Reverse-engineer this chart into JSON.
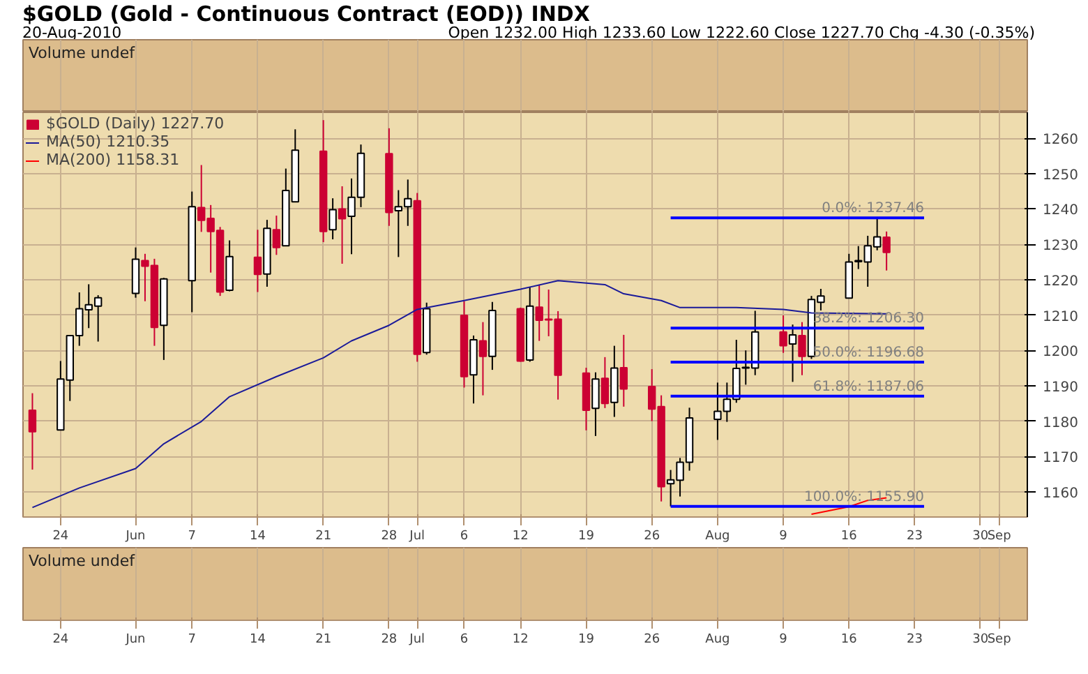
{
  "chart_data": {
    "type": "candlestick",
    "title": "$GOLD (Gold - Continuous Contract (EOD)) INDX",
    "subtitle": "20-Aug-2010",
    "annotations": [
      "Open 1232.00 High 1233.60 Low 1222.60 Close 1227.70 Chg -4.30 (-0.35%)",
      "Volume undef",
      "Volume undef",
      {
        "text": "0.0%: 1237.46",
        "x": "2010-08-24",
        "y": 1237.46
      },
      {
        "text": "38.2%: 1206.30",
        "x": "2010-08-24",
        "y": 1206.3
      },
      {
        "text": "50.0%: 1196.68",
        "x": "2010-08-24",
        "y": 1196.68
      },
      {
        "text": "61.8%: 1187.06",
        "x": "2010-08-24",
        "y": 1187.06
      },
      {
        "text": "100.0%: 1155.90",
        "x": "2010-08-24",
        "y": 1155.9
      }
    ],
    "xlim": [
      "2010-05-20",
      "2010-09-04"
    ],
    "xticks": [
      {
        "value": "2010-05-24",
        "label": "24"
      },
      {
        "value": "2010-06-01",
        "label": "Jun"
      },
      {
        "value": "2010-06-07",
        "label": "7"
      },
      {
        "value": "2010-06-14",
        "label": "14"
      },
      {
        "value": "2010-06-21",
        "label": "21"
      },
      {
        "value": "2010-06-28",
        "label": "28"
      },
      {
        "value": "2010-07-01",
        "label": "Jul"
      },
      {
        "value": "2010-07-06",
        "label": "6"
      },
      {
        "value": "2010-07-12",
        "label": "12"
      },
      {
        "value": "2010-07-19",
        "label": "19"
      },
      {
        "value": "2010-07-26",
        "label": "26"
      },
      {
        "value": "2010-08-02",
        "label": "Aug"
      },
      {
        "value": "2010-08-09",
        "label": "9"
      },
      {
        "value": "2010-08-16",
        "label": "16"
      },
      {
        "value": "2010-08-23",
        "label": "23"
      },
      {
        "value": "2010-08-30",
        "label": "30"
      },
      {
        "value": "2010-09-01",
        "label": "Sep"
      }
    ],
    "ylim": [
      1152.9,
      1267.3
    ],
    "yticks": [
      1160,
      1170,
      1180,
      1190,
      1200,
      1210,
      1220,
      1230,
      1240,
      1250,
      1260
    ],
    "grid": true,
    "legend": "top left",
    "series": [
      {
        "name": "$GOLD (Daily) 1227.70",
        "type": "candlestick",
        "colors": [
          "#cc0033",
          "#ffffff",
          "#ffffff",
          "#ffffff",
          "#ffffff",
          "#ffffff",
          "#ffffff",
          "#cc0033",
          "#cc0033",
          "#ffffff",
          "#ffffff",
          "#cc0033",
          "#cc0033",
          "#cc0033",
          "#ffffff",
          "#cc0033",
          "#ffffff",
          "#cc0033",
          "#ffffff",
          "#ffffff",
          "#cc0033",
          "#ffffff",
          "#cc0033",
          "#ffffff",
          "#ffffff",
          "#cc0033",
          "#ffffff",
          "#ffffff",
          "#cc0033",
          "#ffffff",
          "#cc0033",
          "#ffffff",
          "#cc0033",
          "#ffffff",
          "#cc0033",
          "#ffffff",
          "#cc0033",
          "#cc0033",
          "#cc0033",
          "#cc0033",
          "#ffffff",
          "#cc0033",
          "#ffffff",
          "#cc0033",
          "#cc0033",
          "#cc0033",
          "#ffffff",
          "#ffffff",
          "#ffffff",
          "#ffffff",
          "#ffffff",
          "#ffffff",
          "#ffffff",
          "#ffffff",
          "#cc0033",
          "#ffffff",
          "#cc0033",
          "#ffffff",
          "#ffffff",
          "#ffffff",
          "#ffffff",
          "#ffffff",
          "#ffffff",
          "#cc0033"
        ],
        "x": [
          "2010-05-21",
          "2010-05-24",
          "2010-05-25",
          "2010-05-26",
          "2010-05-27",
          "2010-05-28",
          "2010-06-01",
          "2010-06-02",
          "2010-06-03",
          "2010-06-04",
          "2010-06-07",
          "2010-06-08",
          "2010-06-09",
          "2010-06-10",
          "2010-06-11",
          "2010-06-14",
          "2010-06-15",
          "2010-06-16",
          "2010-06-17",
          "2010-06-18",
          "2010-06-21",
          "2010-06-22",
          "2010-06-23",
          "2010-06-24",
          "2010-06-25",
          "2010-06-28",
          "2010-06-29",
          "2010-06-30",
          "2010-07-01",
          "2010-07-02",
          "2010-07-06",
          "2010-07-07",
          "2010-07-08",
          "2010-07-09",
          "2010-07-12",
          "2010-07-13",
          "2010-07-14",
          "2010-07-15",
          "2010-07-16",
          "2010-07-19",
          "2010-07-20",
          "2010-07-21",
          "2010-07-22",
          "2010-07-23",
          "2010-07-26",
          "2010-07-27",
          "2010-07-28",
          "2010-07-29",
          "2010-07-30",
          "2010-08-02",
          "2010-08-03",
          "2010-08-04",
          "2010-08-05",
          "2010-08-06",
          "2010-08-09",
          "2010-08-10",
          "2010-08-11",
          "2010-08-12",
          "2010-08-13",
          "2010-08-16",
          "2010-08-17",
          "2010-08-18",
          "2010-08-19",
          "2010-08-20"
        ],
        "ohlc": [
          [
            1183.1,
            1187.9,
            1166.3,
            1177.0
          ],
          [
            1177.5,
            1197.0,
            1177.5,
            1191.9
          ],
          [
            1191.6,
            1204.2,
            1185.7,
            1204.2
          ],
          [
            1204.2,
            1216.4,
            1201.3,
            1211.8
          ],
          [
            1211.5,
            1218.7,
            1206.3,
            1212.9
          ],
          [
            1212.5,
            1215.6,
            1202.5,
            1214.9
          ],
          [
            1216.1,
            1229.1,
            1214.9,
            1225.8
          ],
          [
            1225.4,
            1227.3,
            1213.9,
            1223.8
          ],
          [
            1224.0,
            1225.9,
            1201.3,
            1206.5
          ],
          [
            1207.1,
            1220.5,
            1197.3,
            1220.2
          ],
          [
            1219.7,
            1244.9,
            1210.8,
            1240.6
          ],
          [
            1240.4,
            1252.4,
            1233.5,
            1236.8
          ],
          [
            1237.3,
            1241.1,
            1222.0,
            1233.6
          ],
          [
            1233.9,
            1234.9,
            1215.4,
            1216.5
          ],
          [
            1217.0,
            1231.1,
            1216.7,
            1226.5
          ],
          [
            1226.3,
            1234.1,
            1216.5,
            1221.5
          ],
          [
            1221.6,
            1236.9,
            1218.0,
            1234.5
          ],
          [
            1234.1,
            1238.1,
            1227.0,
            1229.1
          ],
          [
            1229.6,
            1251.4,
            1229.6,
            1245.2
          ],
          [
            1242.0,
            1262.5,
            1242.0,
            1256.6
          ],
          [
            1256.3,
            1265.1,
            1230.6,
            1233.6
          ],
          [
            1234.1,
            1243.0,
            1231.4,
            1239.8
          ],
          [
            1240.0,
            1246.4,
            1224.5,
            1237.2
          ],
          [
            1237.9,
            1248.6,
            1227.2,
            1243.3
          ],
          [
            1243.3,
            1258.2,
            1240.5,
            1255.7
          ],
          [
            1255.6,
            1262.8,
            1235.2,
            1239.0
          ],
          [
            1239.5,
            1245.3,
            1226.4,
            1240.6
          ],
          [
            1240.6,
            1248.3,
            1235.2,
            1242.9
          ],
          [
            1242.3,
            1244.5,
            1196.8,
            1198.9
          ],
          [
            1199.4,
            1213.5,
            1198.8,
            1211.8
          ],
          [
            1209.9,
            1213.9,
            1189.5,
            1192.6
          ],
          [
            1193.1,
            1204.2,
            1185.0,
            1203.0
          ],
          [
            1202.7,
            1208.0,
            1187.3,
            1198.3
          ],
          [
            1198.3,
            1213.7,
            1194.5,
            1211.3
          ],
          [
            1211.8,
            1212.1,
            1196.8,
            1197.0
          ],
          [
            1197.3,
            1217.8,
            1196.8,
            1212.5
          ],
          [
            1212.2,
            1218.6,
            1202.7,
            1208.5
          ],
          [
            1208.8,
            1217.2,
            1204.0,
            1208.6
          ],
          [
            1208.8,
            1211.1,
            1186.1,
            1193.0
          ],
          [
            1193.6,
            1195.1,
            1177.4,
            1183.1
          ],
          [
            1183.6,
            1193.8,
            1175.8,
            1191.9
          ],
          [
            1192.1,
            1198.1,
            1183.7,
            1185.0
          ],
          [
            1185.3,
            1201.3,
            1181.2,
            1195.0
          ],
          [
            1195.1,
            1204.4,
            1184.1,
            1189.1
          ],
          [
            1189.8,
            1194.7,
            1180.0,
            1183.4
          ],
          [
            1184.1,
            1187.3,
            1157.3,
            1161.5
          ],
          [
            1162.3,
            1166.2,
            1155.9,
            1163.4
          ],
          [
            1163.3,
            1169.6,
            1158.7,
            1168.4
          ],
          [
            1168.4,
            1183.8,
            1166.0,
            1180.9
          ],
          [
            1180.5,
            1190.9,
            1174.7,
            1182.8
          ],
          [
            1182.8,
            1190.9,
            1179.8,
            1186.2
          ],
          [
            1186.2,
            1203.0,
            1185.2,
            1194.9
          ],
          [
            1195.0,
            1200.0,
            1190.3,
            1195.2
          ],
          [
            1195.0,
            1211.2,
            1193.0,
            1205.2
          ],
          [
            1205.2,
            1209.9,
            1199.3,
            1201.3
          ],
          [
            1201.8,
            1207.3,
            1191.1,
            1204.4
          ],
          [
            1204.2,
            1208.0,
            1193.0,
            1198.3
          ],
          [
            1198.3,
            1215.4,
            1197.6,
            1214.4
          ],
          [
            1213.6,
            1217.4,
            1211.3,
            1215.4
          ],
          [
            1214.8,
            1227.3,
            1214.8,
            1225.0
          ],
          [
            1225.1,
            1229.5,
            1223.0,
            1225.4
          ],
          [
            1225.0,
            1232.4,
            1218.0,
            1229.6
          ],
          [
            1229.3,
            1237.46,
            1228.3,
            1232.1
          ],
          [
            1232.0,
            1233.6,
            1222.6,
            1227.7
          ]
        ]
      },
      {
        "name": "MA(50) 1210.35",
        "type": "line",
        "color": "#1a1a99",
        "x": [
          "2010-05-21",
          "2010-05-26",
          "2010-06-01",
          "2010-06-04",
          "2010-06-08",
          "2010-06-11",
          "2010-06-16",
          "2010-06-21",
          "2010-06-24",
          "2010-06-28",
          "2010-07-01",
          "2010-07-06",
          "2010-07-12",
          "2010-07-16",
          "2010-07-21",
          "2010-07-23",
          "2010-07-27",
          "2010-07-29",
          "2010-08-04",
          "2010-08-09",
          "2010-08-12",
          "2010-08-20"
        ],
        "values": [
          1155.6,
          1161.1,
          1166.6,
          1173.6,
          1179.9,
          1186.9,
          1192.6,
          1197.9,
          1202.7,
          1207.1,
          1211.6,
          1214.1,
          1217.3,
          1219.7,
          1218.6,
          1216.0,
          1214.1,
          1212.1,
          1212.1,
          1211.6,
          1210.6,
          1210.35
        ]
      },
      {
        "name": "MA(200) 1158.31",
        "type": "line",
        "color": "#ff0000",
        "x": [
          "2010-08-12",
          "2010-08-16",
          "2010-08-18",
          "2010-08-20"
        ],
        "values": [
          1153.7,
          1155.8,
          1157.6,
          1158.31
        ]
      },
      {
        "type": "line",
        "color": "#0000ff",
        "x": [
          "2010-07-28",
          "2010-08-24"
        ],
        "values": [
          1237.46,
          1237.46
        ]
      },
      {
        "type": "line",
        "color": "#0000ff",
        "x": [
          "2010-07-28",
          "2010-08-24"
        ],
        "values": [
          1206.3,
          1206.3
        ]
      },
      {
        "type": "line",
        "color": "#0000ff",
        "x": [
          "2010-07-28",
          "2010-08-24"
        ],
        "values": [
          1196.68,
          1196.68
        ]
      },
      {
        "type": "line",
        "color": "#0000ff",
        "x": [
          "2010-07-28",
          "2010-08-24"
        ],
        "values": [
          1187.06,
          1187.06
        ]
      },
      {
        "type": "line",
        "color": "#0000ff",
        "x": [
          "2010-07-28",
          "2010-08-24"
        ],
        "values": [
          1155.9,
          1155.9
        ]
      }
    ]
  }
}
